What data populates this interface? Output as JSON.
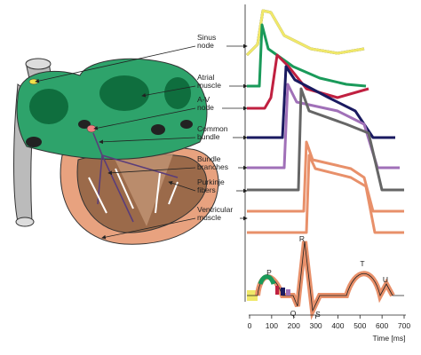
{
  "structures": [
    [
      "Sinus",
      "node"
    ],
    [
      "Atrial",
      "muscle"
    ],
    [
      "A-V",
      "node"
    ],
    [
      "Common",
      "bundle"
    ],
    [
      "Bundle",
      "branches"
    ],
    [
      "Purkinje",
      "fibers"
    ],
    [
      "Ventricular",
      "muscle"
    ]
  ],
  "ecg_waves": [
    "P",
    "Q",
    "R",
    "S",
    "T",
    "U"
  ],
  "time_axis": {
    "ticks": [
      0,
      100,
      200,
      300,
      400,
      500,
      600,
      700
    ],
    "label": "Time [ms]"
  }
}
